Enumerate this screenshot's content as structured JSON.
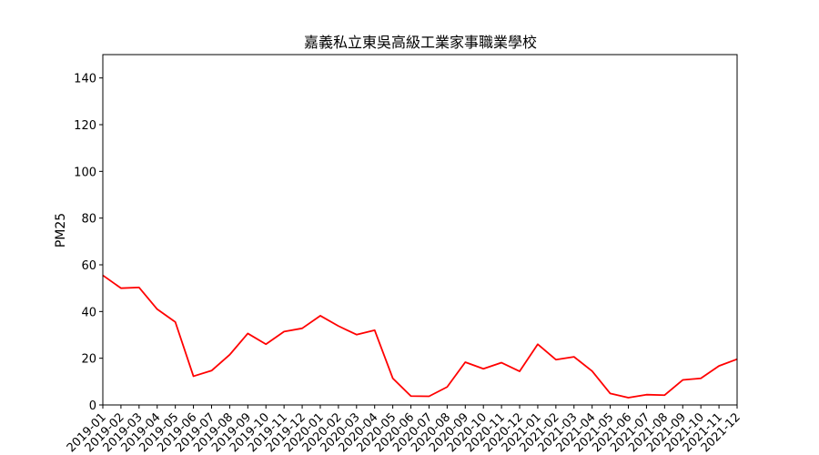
{
  "chart_data": {
    "type": "line",
    "title": "嘉義私立東吳高級工業家事職業學校",
    "xlabel": "",
    "ylabel": "PM25",
    "ylim": [
      0,
      150
    ],
    "yticks": [
      0,
      20,
      40,
      60,
      80,
      100,
      120,
      140
    ],
    "grid": false,
    "line_color": "#ff0000",
    "x": [
      "2019-01",
      "2019-02",
      "2019-03",
      "2019-04",
      "2019-05",
      "2019-06",
      "2019-07",
      "2019-08",
      "2019-09",
      "2019-10",
      "2019-11",
      "2019-12",
      "2020-01",
      "2020-02",
      "2020-03",
      "2020-04",
      "2020-05",
      "2020-06",
      "2020-07",
      "2020-08",
      "2020-09",
      "2020-10",
      "2020-11",
      "2020-12",
      "2021-01",
      "2021-02",
      "2021-03",
      "2021-04",
      "2021-05",
      "2021-06",
      "2021-07",
      "2021-08",
      "2021-09",
      "2021-10",
      "2021-11",
      "2021-12"
    ],
    "series": [
      {
        "values": [
          55.5,
          50,
          50.3,
          41,
          35.5,
          12.3,
          14.7,
          21.5,
          30.6,
          26,
          31.4,
          32.8,
          38.2,
          33.8,
          30.1,
          32,
          11.4,
          3.8,
          3.7,
          7.7,
          18.3,
          15.5,
          18.1,
          14.4,
          26,
          19.4,
          20.6,
          14.5,
          4.9,
          3.1,
          4.4,
          4.2,
          10.7,
          11.4,
          16.7,
          19.6
        ]
      }
    ]
  }
}
